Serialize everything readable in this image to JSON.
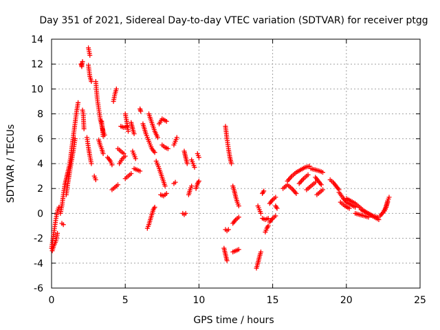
{
  "chart_data": {
    "type": "scatter",
    "title": "Day 351 of 2021, Sidereal Day-to-day VTEC variation (SDTVAR) for receiver ptgg",
    "xlabel": "GPS time / hours",
    "ylabel": "SDTVAR / TECUs",
    "xlim": [
      0,
      25
    ],
    "ylim": [
      -6,
      14
    ],
    "x_ticks": [
      0,
      5,
      10,
      15,
      20,
      25
    ],
    "y_ticks": [
      -6,
      -4,
      -2,
      0,
      2,
      4,
      6,
      8,
      10,
      12,
      14
    ],
    "grid": true,
    "marker": "+",
    "marker_color": "#ff0000",
    "series": [
      {
        "name": "SDTVAR",
        "segments": [
          [
            [
              0.0,
              -2.8
            ],
            [
              0.1,
              -2.0
            ],
            [
              0.2,
              -1.2
            ],
            [
              0.3,
              -0.4
            ],
            [
              0.4,
              0.2
            ],
            [
              0.5,
              0.5
            ]
          ],
          [
            [
              0.05,
              -3.0
            ],
            [
              0.15,
              -2.6
            ],
            [
              0.3,
              -2.2
            ],
            [
              0.4,
              -1.6
            ]
          ],
          [
            [
              0.6,
              0.0
            ],
            [
              0.7,
              0.6
            ],
            [
              0.8,
              1.5
            ],
            [
              0.9,
              2.3
            ],
            [
              1.0,
              2.8
            ],
            [
              1.1,
              3.3
            ],
            [
              1.2,
              3.8
            ],
            [
              1.3,
              4.6
            ],
            [
              1.4,
              5.5
            ],
            [
              1.5,
              6.4
            ],
            [
              1.6,
              7.3
            ],
            [
              1.7,
              8.2
            ],
            [
              1.8,
              8.9
            ]
          ],
          [
            [
              0.7,
              -0.8
            ],
            [
              0.8,
              -0.9
            ]
          ],
          [
            [
              1.0,
              1.5
            ],
            [
              1.1,
              2.4
            ],
            [
              1.2,
              3.1
            ],
            [
              1.35,
              4.2
            ],
            [
              1.5,
              5.2
            ],
            [
              1.6,
              6.0
            ]
          ],
          [
            [
              2.0,
              12.0
            ],
            [
              2.05,
              11.8
            ],
            [
              2.1,
              12.2
            ]
          ],
          [
            [
              2.1,
              8.3
            ],
            [
              2.15,
              8.0
            ],
            [
              2.2,
              6.8
            ]
          ],
          [
            [
              2.5,
              13.3
            ],
            [
              2.55,
              13.0
            ],
            [
              2.6,
              12.7
            ]
          ],
          [
            [
              2.5,
              11.9
            ],
            [
              2.6,
              11.0
            ],
            [
              2.7,
              10.6
            ]
          ],
          [
            [
              2.4,
              6.1
            ],
            [
              2.5,
              5.3
            ],
            [
              2.6,
              4.6
            ],
            [
              2.7,
              4.0
            ]
          ],
          [
            [
              2.9,
              3.0
            ],
            [
              3.0,
              2.7
            ]
          ],
          [
            [
              3.0,
              10.6
            ],
            [
              3.1,
              9.2
            ],
            [
              3.2,
              8.4
            ],
            [
              3.3,
              7.6
            ],
            [
              3.4,
              7.1
            ],
            [
              3.5,
              6.6
            ],
            [
              3.6,
              6.3
            ]
          ],
          [
            [
              3.2,
              5.9
            ],
            [
              3.3,
              5.5
            ],
            [
              3.4,
              5.2
            ],
            [
              3.5,
              4.8
            ]
          ],
          [
            [
              3.4,
              7.4
            ],
            [
              3.45,
              6.8
            ],
            [
              3.5,
              6.2
            ]
          ],
          [
            [
              3.8,
              4.5
            ],
            [
              4.0,
              4.2
            ],
            [
              4.1,
              3.9
            ]
          ],
          [
            [
              4.1,
              1.9
            ],
            [
              4.3,
              2.1
            ],
            [
              4.5,
              2.3
            ]
          ],
          [
            [
              4.2,
              9.0
            ],
            [
              4.3,
              9.6
            ],
            [
              4.4,
              10.0
            ]
          ],
          [
            [
              4.5,
              5.2
            ],
            [
              4.7,
              5.0
            ],
            [
              4.9,
              4.8
            ]
          ],
          [
            [
              4.6,
              4.0
            ],
            [
              4.8,
              4.4
            ],
            [
              5.0,
              4.6
            ]
          ],
          [
            [
              4.7,
              7.0
            ],
            [
              4.9,
              6.9
            ],
            [
              5.1,
              7.0
            ]
          ],
          [
            [
              5.0,
              8.0
            ],
            [
              5.1,
              7.4
            ],
            [
              5.2,
              6.6
            ]
          ],
          [
            [
              5.0,
              2.8
            ],
            [
              5.2,
              3.0
            ],
            [
              5.4,
              3.2
            ]
          ],
          [
            [
              5.4,
              7.3
            ],
            [
              5.5,
              6.8
            ],
            [
              5.6,
              6.4
            ]
          ],
          [
            [
              5.5,
              5.0
            ],
            [
              5.6,
              4.7
            ],
            [
              5.7,
              4.4
            ]
          ],
          [
            [
              5.6,
              3.6
            ],
            [
              5.8,
              3.5
            ],
            [
              6.0,
              3.4
            ]
          ],
          [
            [
              6.0,
              8.4
            ],
            [
              6.05,
              8.2
            ]
          ],
          [
            [
              6.2,
              7.2
            ],
            [
              6.4,
              6.4
            ],
            [
              6.6,
              5.8
            ],
            [
              6.8,
              5.2
            ],
            [
              7.0,
              4.9
            ]
          ],
          [
            [
              6.5,
              -1.2
            ],
            [
              6.6,
              -0.9
            ],
            [
              6.7,
              -0.5
            ],
            [
              6.8,
              -0.1
            ],
            [
              6.9,
              0.3
            ],
            [
              7.0,
              0.5
            ]
          ],
          [
            [
              6.6,
              8.0
            ],
            [
              6.8,
              7.3
            ],
            [
              7.0,
              6.6
            ],
            [
              7.2,
              6.1
            ]
          ],
          [
            [
              7.1,
              4.2
            ],
            [
              7.3,
              3.6
            ],
            [
              7.5,
              2.9
            ],
            [
              7.7,
              2.2
            ]
          ],
          [
            [
              7.3,
              7.2
            ],
            [
              7.5,
              7.6
            ],
            [
              7.8,
              7.4
            ]
          ],
          [
            [
              7.4,
              1.5
            ],
            [
              7.6,
              1.4
            ],
            [
              7.8,
              1.6
            ]
          ],
          [
            [
              7.5,
              5.5
            ],
            [
              7.7,
              5.3
            ],
            [
              7.9,
              5.2
            ]
          ],
          [
            [
              8.3,
              2.4
            ],
            [
              8.4,
              2.5
            ]
          ],
          [
            [
              8.5,
              6.1
            ],
            [
              8.4,
              5.8
            ],
            [
              8.3,
              5.5
            ]
          ],
          [
            [
              8.9,
              0.0
            ],
            [
              9.0,
              -0.1
            ],
            [
              9.1,
              0.0
            ]
          ],
          [
            [
              9.0,
              5.0
            ],
            [
              9.1,
              4.5
            ],
            [
              9.2,
              4.0
            ]
          ],
          [
            [
              9.3,
              1.5
            ],
            [
              9.4,
              1.9
            ],
            [
              9.5,
              2.2
            ]
          ],
          [
            [
              9.5,
              4.3
            ],
            [
              9.6,
              4.0
            ],
            [
              9.7,
              3.7
            ]
          ],
          [
            [
              9.8,
              2.0
            ],
            [
              9.9,
              2.4
            ],
            [
              10.0,
              2.6
            ]
          ],
          [
            [
              9.9,
              4.8
            ],
            [
              10.0,
              4.5
            ]
          ],
          [
            [
              11.7,
              -2.8
            ],
            [
              11.8,
              -3.3
            ],
            [
              11.9,
              -3.8
            ]
          ],
          [
            [
              11.8,
              -1.3
            ],
            [
              11.9,
              -1.4
            ],
            [
              12.0,
              -1.3
            ]
          ],
          [
            [
              11.8,
              7.0
            ],
            [
              11.9,
              6.0
            ],
            [
              12.0,
              5.2
            ],
            [
              12.1,
              4.5
            ],
            [
              12.2,
              4.0
            ]
          ],
          [
            [
              12.3,
              -0.8
            ],
            [
              12.5,
              -0.5
            ],
            [
              12.7,
              -0.3
            ]
          ],
          [
            [
              12.3,
              -3.1
            ],
            [
              12.5,
              -3.0
            ],
            [
              12.7,
              -2.9
            ]
          ],
          [
            [
              12.3,
              2.2
            ],
            [
              12.4,
              1.8
            ],
            [
              12.5,
              1.3
            ],
            [
              12.6,
              0.9
            ],
            [
              12.7,
              0.6
            ]
          ],
          [
            [
              13.9,
              -4.4
            ],
            [
              14.0,
              -4.0
            ],
            [
              14.1,
              -3.5
            ],
            [
              14.2,
              -3.1
            ]
          ],
          [
            [
              14.0,
              0.6
            ],
            [
              14.1,
              0.3
            ],
            [
              14.2,
              0.0
            ]
          ],
          [
            [
              14.3,
              -0.4
            ],
            [
              14.5,
              -0.5
            ],
            [
              14.7,
              -0.4
            ]
          ],
          [
            [
              14.3,
              1.6
            ],
            [
              14.4,
              1.8
            ]
          ],
          [
            [
              14.5,
              -1.5
            ],
            [
              14.6,
              -1.2
            ],
            [
              14.7,
              -1.0
            ]
          ],
          [
            [
              14.8,
              -0.7
            ],
            [
              15.0,
              -0.4
            ],
            [
              15.2,
              -0.2
            ]
          ],
          [
            [
              14.8,
              0.8
            ],
            [
              15.0,
              1.1
            ],
            [
              15.2,
              1.3
            ]
          ],
          [
            [
              15.2,
              0.6
            ],
            [
              15.3,
              0.4
            ]
          ],
          [
            [
              15.7,
              2.0
            ],
            [
              16.0,
              2.3
            ],
            [
              16.3,
              2.0
            ],
            [
              16.6,
              1.6
            ]
          ],
          [
            [
              16.0,
              2.6
            ],
            [
              16.3,
              3.0
            ],
            [
              16.6,
              3.3
            ],
            [
              16.9,
              3.5
            ],
            [
              17.2,
              3.7
            ],
            [
              17.5,
              3.8
            ]
          ],
          [
            [
              16.8,
              2.4
            ],
            [
              17.1,
              2.8
            ],
            [
              17.4,
              3.1
            ]
          ],
          [
            [
              17.3,
              1.9
            ],
            [
              17.6,
              2.2
            ],
            [
              17.9,
              2.5
            ]
          ],
          [
            [
              17.6,
              3.6
            ],
            [
              17.9,
              3.5
            ],
            [
              18.2,
              3.4
            ],
            [
              18.4,
              3.3
            ]
          ],
          [
            [
              17.9,
              2.9
            ],
            [
              18.1,
              2.6
            ],
            [
              18.3,
              2.3
            ]
          ],
          [
            [
              18.0,
              1.5
            ],
            [
              18.2,
              1.7
            ],
            [
              18.4,
              1.9
            ]
          ],
          [
            [
              18.9,
              2.7
            ],
            [
              19.1,
              2.5
            ],
            [
              19.3,
              2.2
            ],
            [
              19.5,
              1.9
            ]
          ],
          [
            [
              19.5,
              1.7
            ],
            [
              19.8,
              1.2
            ],
            [
              20.0,
              0.9
            ],
            [
              20.3,
              0.7
            ],
            [
              20.6,
              0.5
            ]
          ],
          [
            [
              19.6,
              0.9
            ],
            [
              19.9,
              0.6
            ],
            [
              20.2,
              0.4
            ]
          ],
          [
            [
              20.0,
              1.2
            ],
            [
              20.3,
              1.0
            ],
            [
              20.6,
              0.8
            ],
            [
              20.9,
              0.5
            ],
            [
              21.2,
              0.2
            ],
            [
              21.5,
              0.0
            ],
            [
              21.8,
              -0.2
            ],
            [
              22.1,
              -0.3
            ]
          ],
          [
            [
              20.6,
              0.0
            ],
            [
              20.9,
              -0.1
            ],
            [
              21.2,
              -0.2
            ],
            [
              21.5,
              -0.3
            ]
          ],
          [
            [
              21.0,
              0.3
            ],
            [
              21.3,
              0.1
            ],
            [
              21.6,
              -0.1
            ],
            [
              21.9,
              -0.3
            ],
            [
              22.2,
              -0.5
            ]
          ],
          [
            [
              22.3,
              -0.2
            ],
            [
              22.5,
              0.1
            ],
            [
              22.7,
              0.5
            ],
            [
              22.8,
              0.9
            ]
          ],
          [
            [
              22.6,
              0.2
            ],
            [
              22.7,
              0.6
            ],
            [
              22.8,
              1.0
            ],
            [
              22.9,
              1.3
            ]
          ]
        ]
      }
    ]
  }
}
